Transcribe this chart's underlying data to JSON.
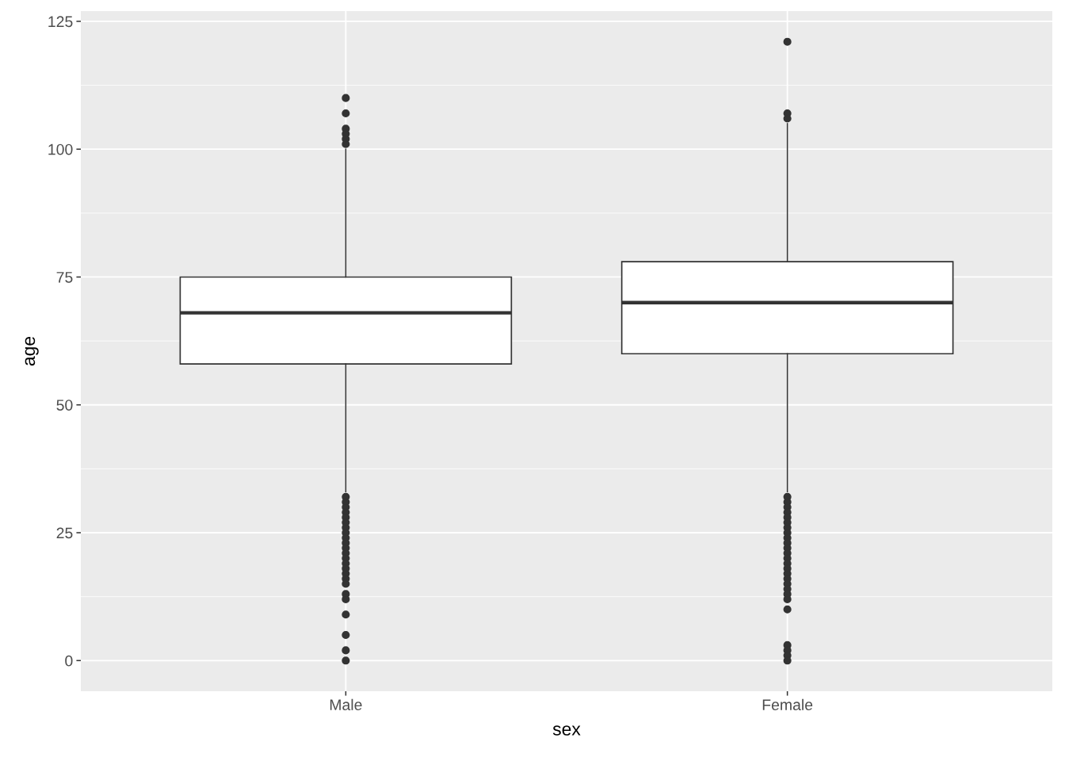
{
  "chart_data": {
    "type": "box",
    "xlabel": "sex",
    "ylabel": "age",
    "categories": [
      "Male",
      "Female"
    ],
    "boxes": [
      {
        "low": 33,
        "q1": 58,
        "median": 68,
        "q3": 75,
        "high": 100,
        "outliers": [
          110,
          107,
          104,
          103,
          102,
          101,
          32,
          31,
          30,
          29,
          28,
          27,
          26,
          25,
          24,
          23,
          22,
          21,
          20,
          19,
          18,
          17,
          16,
          15,
          13,
          12,
          9,
          5,
          2,
          0
        ]
      },
      {
        "low": 33,
        "q1": 60,
        "median": 70,
        "q3": 78,
        "high": 105,
        "outliers": [
          121,
          107,
          106,
          32,
          31,
          30,
          29,
          28,
          27,
          26,
          25,
          24,
          23,
          22,
          21,
          20,
          19,
          18,
          17,
          16,
          15,
          14,
          13,
          12,
          10,
          3,
          2,
          1,
          0
        ]
      }
    ],
    "ylim": [
      -6,
      127
    ],
    "yticks": [
      0,
      25,
      50,
      75,
      100,
      125
    ],
    "grid": true
  }
}
